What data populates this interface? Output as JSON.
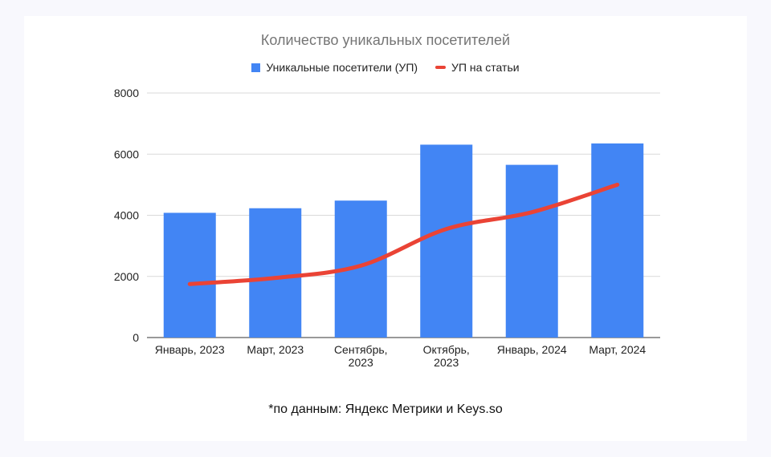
{
  "chart_data": {
    "type": "bar",
    "title": "Количество уникальных посетителей",
    "categories": [
      "Январь, 2023",
      "Март, 2023",
      "Сентябрь, 2023",
      "Октябрь, 2023",
      "Январь, 2024",
      "Март, 2024"
    ],
    "series": [
      {
        "name": "Уникальные посетители (УП)",
        "type": "bar",
        "color": "#4285f4",
        "values": [
          4080,
          4230,
          4480,
          6310,
          5650,
          6350
        ]
      },
      {
        "name": "УП на статьи",
        "type": "line",
        "color": "#ea4335",
        "values": [
          1750,
          1950,
          2350,
          3550,
          4100,
          5000
        ]
      }
    ],
    "ylim": [
      0,
      8000
    ],
    "yticks": [
      0,
      2000,
      4000,
      6000,
      8000
    ],
    "xlabel": "",
    "ylabel": "",
    "grid": true,
    "legend_position": "top-center"
  },
  "footnote": "*по данным: Яндекс Метрики и Keys.so"
}
